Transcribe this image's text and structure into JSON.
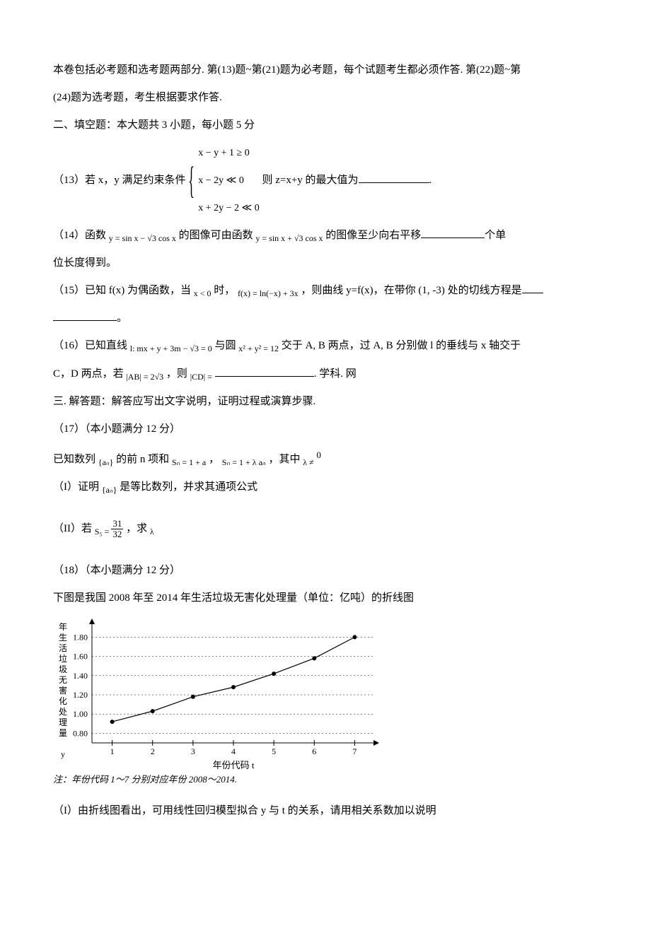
{
  "intro1": "本卷包括必考题和选考题两部分. 第(13)题~第(21)题为必考题，每个试题考生都必须作答. 第(22)题~第",
  "intro2": "(24)题为选考题，考生根据要求作答.",
  "section2_title": "二、填空题：本大题共 3 小题，每小题 5 分",
  "q13": {
    "lead": "（13）若 x，y 满足约束条件",
    "c1": "x − y + 1 ≥ 0",
    "c2": "x − 2y ≪ 0",
    "c3": "x + 2y − 2 ≪ 0",
    "mid": " 则 z=x+y 的最大值为",
    "tail": "."
  },
  "q14": {
    "p1": "（14）函数",
    "f1": "y = sin x − √3 cos x",
    "p2": "的图像可由函数",
    "f2": "y = sin x + √3 cos x",
    "p3": "的图像至少向右平移",
    "p4": "个单",
    "p5": "位长度得到。"
  },
  "q15": {
    "p1": "（15）已知 f(x) 为偶函数，当",
    "cond": "x < 0",
    "p2": "时，",
    "fx": "f(x) = ln(−x) + 3x",
    "p3": "，则曲线 y=f(x)，在带你 (1, -3) 处的切线方程是",
    "tail": "。"
  },
  "q16": {
    "p1": "（16）已知直线",
    "line": "l: mx + y + 3m − √3 = 0",
    "p2": "与圆",
    "circle": "x² + y² = 12",
    "p3": "交于 A, B 两点，过 A, B 分别做 l 的垂线与 x 轴交于",
    "p4": "C，D 两点，若",
    "ab": "|AB| = 2√3",
    "p5": "，则",
    "cd": "|CD| =",
    "tail": ". 学科. 网"
  },
  "section3_title": "三. 解答题：解答应写出文字说明，证明过程或演算步骤.",
  "q17": {
    "title": "（17）（本小题满分 12 分）",
    "p1a": "已知数列",
    "an": "{aₙ}",
    "p1b": "的前 n 项和",
    "sn1": "Sₙ = 1 + a",
    "p1c": "，",
    "sn2": "Sₙ = 1 + λ aₙ",
    "p1d": "，其中",
    "lam": "λ ≠",
    "zero": "0",
    "part1a": "（I）证明",
    "part1b": "是等比数列，并求其通项公式",
    "part2a": "（II）若",
    "s5": "S₅ = ",
    "num": "31",
    "den": "32",
    "part2b": " ，求",
    "lam2": "λ"
  },
  "q18": {
    "title": "（18）（本小题满分 12 分）",
    "desc": "下图是我国 2008 年至 2014 年生活垃圾无害化处理量（单位：亿吨）的折线图",
    "note": "注：年份代码 1～7 分别对应年份 2008～2014.",
    "part1": "（I）由折线图看出，可用线性回归模型拟合 y 与 t 的关系，请用相关系数加以说明"
  },
  "chart": {
    "ylabel": "年生活垃圾无害化处理量 y",
    "xlabel": "年份代码 t",
    "yticks": [
      "0.80",
      "1.00",
      "1.20",
      "1.40",
      "1.60",
      "1.80"
    ],
    "xticks": [
      "1",
      "2",
      "3",
      "4",
      "5",
      "6",
      "7"
    ],
    "xtick_pos": [
      1,
      2,
      3,
      4,
      5,
      6,
      7
    ],
    "ytick_vals": [
      0.8,
      1.0,
      1.2,
      1.4,
      1.6,
      1.8
    ],
    "points": [
      {
        "x": 1,
        "y": 0.92
      },
      {
        "x": 2,
        "y": 1.03
      },
      {
        "x": 3,
        "y": 1.18
      },
      {
        "x": 4,
        "y": 1.28
      },
      {
        "x": 5,
        "y": 1.42
      },
      {
        "x": 6,
        "y": 1.58
      },
      {
        "x": 7,
        "y": 1.8
      }
    ],
    "line_color": "#000000",
    "grid_color": "#000000",
    "bg": "#ffffff",
    "font_size": 12,
    "xlim": [
      0.5,
      7.5
    ],
    "ylim": [
      0.7,
      1.95
    ]
  }
}
